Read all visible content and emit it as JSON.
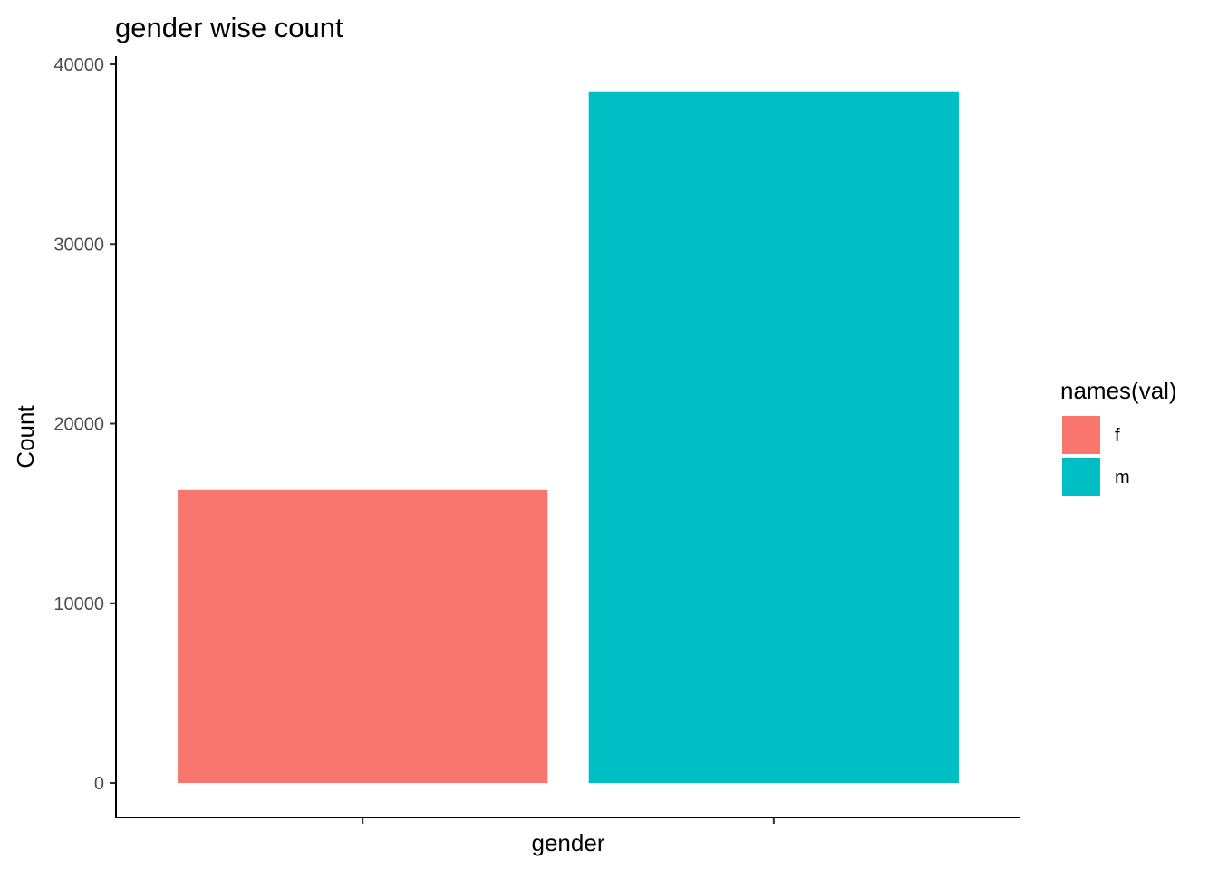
{
  "chart_data": {
    "type": "bar",
    "title": "gender wise count",
    "xlabel": "gender",
    "ylabel": "Count",
    "ylim": [
      0,
      40000
    ],
    "yticks": [
      0,
      10000,
      20000,
      30000,
      40000
    ],
    "ytick_labels": [
      "0",
      "10000",
      "20000",
      "30000",
      "40000"
    ],
    "categories": [
      "f",
      "m"
    ],
    "values": [
      16300,
      38500
    ],
    "colors": [
      "#F8766D",
      "#00BFC4"
    ],
    "grid": false,
    "legend": {
      "title": "names(val)",
      "position": "right",
      "entries": [
        "f",
        "m"
      ]
    }
  }
}
